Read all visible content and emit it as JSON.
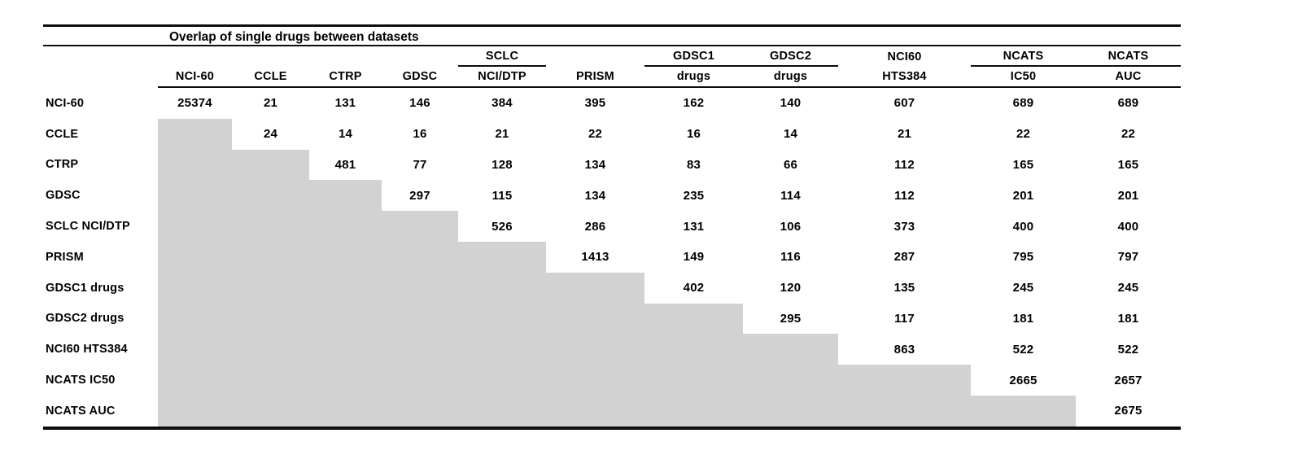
{
  "chart_data": {
    "type": "table",
    "title": "Overlap of single drugs between datasets",
    "column_headers_top": [
      "",
      "",
      "",
      "",
      "SCLC",
      "",
      "GDSC1",
      "GDSC2",
      "NCI60",
      "NCATS",
      "NCATS"
    ],
    "column_headers_bottom": [
      "NCI-60",
      "CCLE",
      "CTRP",
      "GDSC",
      "NCI/DTP",
      "PRISM",
      "drugs",
      "drugs",
      "HTS384",
      "IC50",
      "AUC"
    ],
    "top_header_underline_groups": [
      [
        4,
        4
      ],
      [
        6,
        7
      ],
      [
        9,
        10
      ]
    ],
    "row_labels": [
      "NCI-60",
      "CCLE",
      "CTRP",
      "GDSC",
      "SCLC NCI/DTP",
      "PRISM",
      "GDSC1 drugs",
      "GDSC2 drugs",
      "NCI60 HTS384",
      "NCATS IC50",
      "NCATS AUC"
    ],
    "matrix": [
      [
        25374,
        21,
        131,
        146,
        384,
        395,
        162,
        140,
        607,
        689,
        689
      ],
      [
        null,
        24,
        14,
        16,
        21,
        22,
        16,
        14,
        21,
        22,
        22
      ],
      [
        null,
        null,
        481,
        77,
        128,
        134,
        83,
        66,
        112,
        165,
        165
      ],
      [
        null,
        null,
        null,
        297,
        115,
        134,
        235,
        114,
        112,
        201,
        201
      ],
      [
        null,
        null,
        null,
        null,
        526,
        286,
        131,
        106,
        373,
        400,
        400
      ],
      [
        null,
        null,
        null,
        null,
        null,
        1413,
        149,
        116,
        287,
        795,
        797
      ],
      [
        null,
        null,
        null,
        null,
        null,
        null,
        402,
        120,
        135,
        245,
        245
      ],
      [
        null,
        null,
        null,
        null,
        null,
        null,
        null,
        295,
        117,
        181,
        181
      ],
      [
        null,
        null,
        null,
        null,
        null,
        null,
        null,
        null,
        863,
        522,
        522
      ],
      [
        null,
        null,
        null,
        null,
        null,
        null,
        null,
        null,
        null,
        2665,
        2657
      ],
      [
        null,
        null,
        null,
        null,
        null,
        null,
        null,
        null,
        null,
        null,
        2675
      ]
    ],
    "shaded_region": "lower-triangle",
    "layout_hints": {
      "grid": "off",
      "masked_cells_shaded": true
    },
    "colors": {
      "shade": "#d2d2d2",
      "text": "#000000",
      "rule": "#0d0d0d",
      "background": "#ffffff"
    }
  }
}
